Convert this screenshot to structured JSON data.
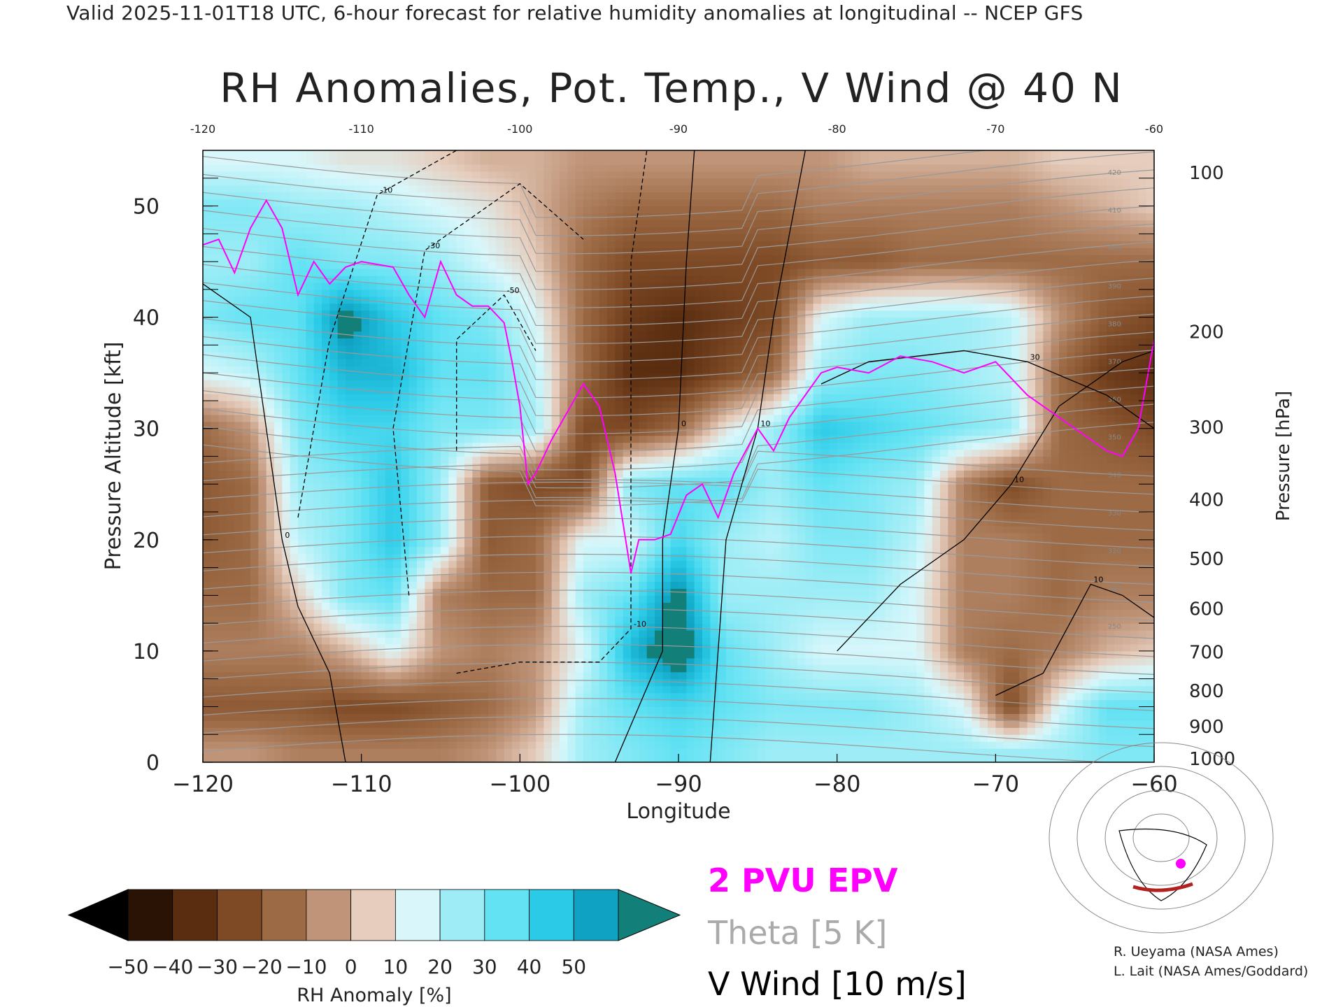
{
  "header": "Valid 2025-11-01T18 UTC, 6-hour forecast for relative humidity anomalies at longitudinal -- NCEP GFS",
  "chart_data": {
    "type": "heatmap",
    "title": "RH Anomalies, Pot. Temp., V Wind @ 40 N",
    "xlabel": "Longitude",
    "ylabel": "Pressure Altitude [kft]",
    "ylabel_right": "Pressure [hPa]",
    "xlim": [
      -120,
      -60
    ],
    "ylim": [
      0,
      55
    ],
    "x_ticks": [
      -120,
      -110,
      -100,
      -90,
      -80,
      -70,
      -60
    ],
    "x_tick_labels": [
      "−120",
      "−110",
      "−100",
      "−90",
      "−80",
      "−70",
      "−60"
    ],
    "x_top_tick_labels": [
      "-120",
      "-110",
      "-100",
      "-90",
      "-80",
      "-70",
      "-60"
    ],
    "y_ticks": [
      0,
      10,
      20,
      30,
      40,
      50
    ],
    "y_tick_labels": [
      "0",
      "10",
      "20",
      "30",
      "40",
      "50"
    ],
    "pressure_ticks": [
      {
        "label": "100",
        "kft": 53.0
      },
      {
        "label": "200",
        "kft": 38.7
      },
      {
        "label": "300",
        "kft": 30.1
      },
      {
        "label": "400",
        "kft": 23.6
      },
      {
        "label": "500",
        "kft": 18.3
      },
      {
        "label": "600",
        "kft": 13.8
      },
      {
        "label": "700",
        "kft": 9.9
      },
      {
        "label": "800",
        "kft": 6.4
      },
      {
        "label": "900",
        "kft": 3.2
      },
      {
        "label": "1000",
        "kft": 0.3
      }
    ],
    "colorbar": {
      "label": "RH Anomaly [%]",
      "ticks": [
        "−50",
        "−40",
        "−30",
        "−20",
        "−10",
        "0",
        "10",
        "20",
        "30",
        "40",
        "50"
      ],
      "colors": [
        "#2a1205",
        "#5a2d10",
        "#7e4a26",
        "#9c6a45",
        "#bf9478",
        "#e6cdbd",
        "#d9f7fb",
        "#9eedf6",
        "#62e2f3",
        "#2bcbe8",
        "#0fa2c2"
      ],
      "under_color": "#000000",
      "over_color": "#128078"
    },
    "rh_anomaly_grid": {
      "x": [
        -120,
        -117,
        -114,
        -111,
        -108,
        -105,
        -102,
        -99,
        -96,
        -93,
        -90,
        -87,
        -84,
        -81,
        -78,
        -75,
        -72,
        -69,
        -66,
        -63,
        -60
      ],
      "y": [
        1,
        5,
        10,
        15,
        20,
        25,
        30,
        35,
        40,
        45,
        50,
        54
      ],
      "values": [
        [
          -10,
          -10,
          -15,
          -15,
          -15,
          -15,
          -10,
          0,
          20,
          25,
          30,
          25,
          20,
          20,
          20,
          20,
          20,
          20,
          20,
          25,
          25
        ],
        [
          -25,
          -25,
          -25,
          -30,
          -30,
          -25,
          -20,
          -10,
          20,
          30,
          35,
          30,
          25,
          25,
          25,
          20,
          10,
          -30,
          10,
          30,
          30
        ],
        [
          -15,
          -15,
          -15,
          -5,
          10,
          -10,
          -15,
          -10,
          10,
          45,
          60,
          30,
          20,
          10,
          10,
          10,
          -15,
          -20,
          -15,
          -5,
          0
        ],
        [
          -20,
          -20,
          0,
          25,
          30,
          -15,
          -20,
          -20,
          20,
          30,
          55,
          20,
          20,
          20,
          20,
          10,
          -15,
          -15,
          -20,
          -15,
          -15
        ],
        [
          -25,
          -20,
          15,
          25,
          40,
          20,
          -25,
          -20,
          10,
          10,
          35,
          20,
          15,
          25,
          25,
          15,
          -15,
          -15,
          -20,
          -20,
          -20
        ],
        [
          -25,
          -20,
          20,
          25,
          40,
          20,
          -25,
          -30,
          -30,
          25,
          30,
          30,
          20,
          30,
          25,
          20,
          -15,
          -30,
          -20,
          -20,
          -20
        ],
        [
          -20,
          -10,
          25,
          35,
          35,
          25,
          25,
          20,
          -30,
          -30,
          -20,
          5,
          20,
          40,
          35,
          30,
          25,
          20,
          -20,
          -25,
          -30
        ],
        [
          10,
          15,
          30,
          45,
          45,
          30,
          30,
          15,
          -20,
          -40,
          -40,
          -30,
          -20,
          20,
          25,
          25,
          20,
          15,
          -20,
          -35,
          -40
        ],
        [
          25,
          30,
          30,
          55,
          40,
          30,
          25,
          10,
          -20,
          -35,
          -40,
          -35,
          -30,
          10,
          20,
          20,
          20,
          15,
          -10,
          -25,
          -30
        ],
        [
          20,
          20,
          30,
          25,
          25,
          20,
          10,
          0,
          -20,
          -30,
          -30,
          -30,
          -30,
          -25,
          -25,
          -20,
          -20,
          -20,
          -20,
          -20,
          -20
        ],
        [
          25,
          25,
          20,
          20,
          15,
          10,
          5,
          -5,
          -15,
          -20,
          -20,
          -20,
          -20,
          -15,
          -15,
          -15,
          -15,
          -15,
          -10,
          -5,
          0
        ],
        [
          10,
          10,
          10,
          5,
          5,
          0,
          -5,
          -5,
          -10,
          -10,
          -10,
          -10,
          -10,
          -10,
          -5,
          -5,
          -5,
          -5,
          0,
          0,
          0
        ]
      ]
    },
    "epv_2pvu": [
      [
        -120,
        46.5
      ],
      [
        -119,
        47
      ],
      [
        -118,
        44
      ],
      [
        -117,
        48
      ],
      [
        -116,
        50.5
      ],
      [
        -115,
        48
      ],
      [
        -114,
        42
      ],
      [
        -113,
        45
      ],
      [
        -112,
        43
      ],
      [
        -111,
        44.5
      ],
      [
        -110,
        45
      ],
      [
        -108,
        44.5
      ],
      [
        -107,
        42
      ],
      [
        -106,
        40
      ],
      [
        -105,
        45
      ],
      [
        -104,
        42
      ],
      [
        -103,
        41
      ],
      [
        -102,
        41
      ],
      [
        -101,
        39.5
      ],
      [
        -100.5,
        36
      ],
      [
        -100,
        32
      ],
      [
        -99.5,
        25
      ],
      [
        -99,
        26
      ],
      [
        -98,
        29
      ],
      [
        -97,
        31.5
      ],
      [
        -96,
        34
      ],
      [
        -95,
        32
      ],
      [
        -94,
        26
      ],
      [
        -93,
        17
      ],
      [
        -92.5,
        20
      ],
      [
        -91.5,
        20
      ],
      [
        -90.5,
        20.5
      ],
      [
        -89.5,
        24
      ],
      [
        -88.5,
        25
      ],
      [
        -87.5,
        22
      ],
      [
        -86.5,
        26
      ],
      [
        -85,
        30
      ],
      [
        -84,
        28
      ],
      [
        -83,
        31
      ],
      [
        -82,
        33
      ],
      [
        -81,
        35
      ],
      [
        -80,
        35.5
      ],
      [
        -78,
        35
      ],
      [
        -76,
        36.5
      ],
      [
        -74,
        36
      ],
      [
        -72,
        35
      ],
      [
        -70,
        36
      ],
      [
        -68,
        33
      ],
      [
        -66,
        31
      ],
      [
        -64,
        29
      ],
      [
        -63,
        28
      ],
      [
        -62,
        27.5
      ],
      [
        -61,
        30
      ],
      [
        -60,
        38
      ]
    ],
    "theta_contours_K": [
      250,
      300,
      320,
      330,
      340,
      350,
      360,
      370,
      380,
      390,
      400,
      410,
      420
    ],
    "v_wind_contours_ms": [
      -50,
      -30,
      -10,
      0,
      10,
      30
    ],
    "legend": [
      "2 PVU EPV",
      "Theta [5 K]",
      "V Wind [10 m/s]"
    ],
    "legend_colors": [
      "#ff00ff",
      "#aaaaaa",
      "#000000"
    ]
  },
  "credits": [
    "R. Ueyama (NASA Ames)",
    "L. Lait (NASA Ames/Goddard)"
  ],
  "inset_map": {
    "description_icon": "north-america-map-icon",
    "line_color": "#b32020",
    "dot_color": "#ff00ff"
  }
}
